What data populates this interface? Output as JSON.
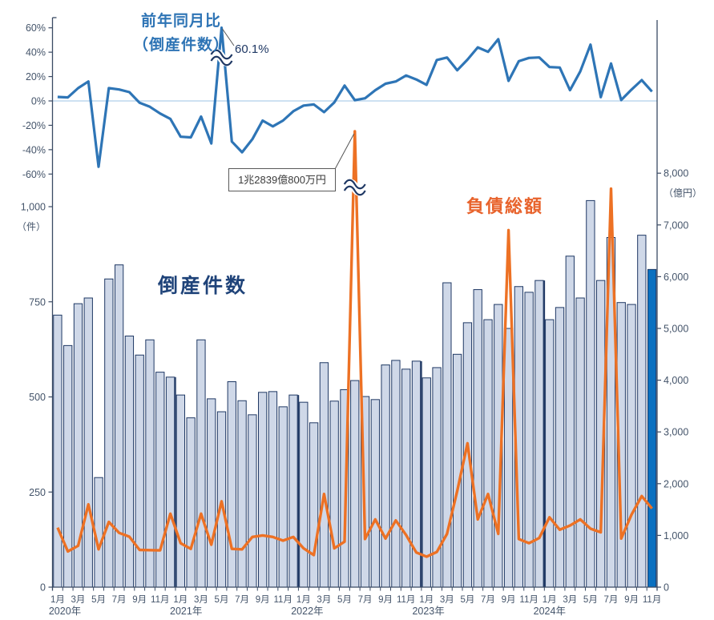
{
  "labels": {
    "yoy_line1": "前年同月比",
    "yoy_line2": "（倒産件数）",
    "yoy_peak": "60.1%",
    "bars_title": "倒産件数",
    "liab_title": "負債総額",
    "liab_peak_box": "1兆2839億800万円"
  },
  "colors": {
    "bar_fill": "#CFD8E8",
    "bar_stroke": "#1F3864",
    "bar_highlight": "#0A70C0",
    "yoy_line": "#2E75B6",
    "liab_line": "#ED7124",
    "zero_gridline": "#BDD7EE",
    "axis": "#3A4A63",
    "axis_text": "#44546A",
    "break_mark": "#1F3864",
    "pointer": "#555555"
  },
  "chart_data": {
    "type": "combo-bar-line",
    "x_start": "2020-01",
    "x_end": "2024-11",
    "n_points": 59,
    "month_tick_labels": [
      "1月",
      "3月",
      "5月",
      "7月",
      "9月",
      "11月"
    ],
    "year_labels": [
      "2020年",
      "2021年",
      "2022年",
      "2023年",
      "2024年"
    ],
    "axes": {
      "left_percent": {
        "tick_labels": [
          "60%",
          "40%",
          "20%",
          "0%",
          "-20%",
          "-40%",
          "-60%"
        ],
        "tick_values": [
          60,
          40,
          20,
          0,
          -20,
          -40,
          -60
        ]
      },
      "left_count": {
        "tick_labels": [
          "1,000",
          "750",
          "500",
          "250",
          "0"
        ],
        "tick_values": [
          1000,
          750,
          500,
          250,
          0
        ],
        "unit_label": "（件）"
      },
      "right_amount": {
        "tick_labels": [
          "8,000",
          "7,000",
          "6,000",
          "5,000",
          "4,000",
          "3,000",
          "2,000",
          "1,000",
          "0"
        ],
        "tick_values": [
          8000,
          7000,
          6000,
          5000,
          4000,
          3000,
          2000,
          1000,
          0
        ],
        "unit_label": "（億円）"
      }
    },
    "series": [
      {
        "name": "倒産件数",
        "type": "bar",
        "axis": "left_count",
        "unit": "件",
        "highlight_last": true,
        "values": [
          715,
          635,
          745,
          760,
          288,
          810,
          847,
          660,
          610,
          650,
          565,
          552,
          505,
          445,
          650,
          495,
          461,
          540,
          490,
          453,
          512,
          514,
          474,
          505,
          486,
          432,
          590,
          489,
          519,
          543,
          501,
          493,
          584,
          596,
          573,
          594,
          550,
          577,
          800,
          612,
          695,
          782,
          703,
          743,
          680,
          790,
          775,
          806,
          703,
          735,
          870,
          760,
          1016,
          806,
          919,
          748,
          743,
          925,
          835
        ]
      },
      {
        "name": "負債総額",
        "type": "line",
        "axis": "right_amount",
        "unit": "億円",
        "clipped_peak_index": 29,
        "clipped_peak_label": "1兆2839億800万円",
        "values": [
          1150,
          690,
          800,
          1600,
          730,
          1260,
          1050,
          975,
          720,
          715,
          710,
          1420,
          850,
          740,
          1420,
          820,
          1660,
          740,
          730,
          970,
          1000,
          970,
          900,
          970,
          750,
          620,
          1800,
          750,
          880,
          12839,
          930,
          1310,
          940,
          1290,
          1010,
          670,
          590,
          680,
          1030,
          1860,
          2780,
          1310,
          1800,
          1030,
          6900,
          930,
          850,
          950,
          1350,
          1110,
          1190,
          1310,
          1130,
          1060,
          7700,
          940,
          1400,
          1760,
          1520
        ]
      },
      {
        "name": "前年同月比（倒産件数）",
        "type": "line",
        "axis": "left_percent",
        "unit": "%",
        "peak_label": "60.1%",
        "peak_index": 16,
        "values": [
          3.3,
          2.9,
          10.5,
          16,
          -54,
          10.5,
          9.4,
          7.2,
          -1.5,
          -4.8,
          -10.3,
          -14.7,
          -29.4,
          -29.9,
          -12.8,
          -34.9,
          60.1,
          -33.3,
          -42.1,
          -31.4,
          -16.1,
          -20.9,
          -16.1,
          -8.5,
          -3.8,
          -2.9,
          -9.2,
          -1.2,
          12.6,
          0.6,
          2.2,
          8.8,
          14.1,
          16,
          20.9,
          17.6,
          13.2,
          33.6,
          35.6,
          25.2,
          33.9,
          44,
          40.3,
          50.7,
          16.4,
          32.6,
          35.3,
          35.7,
          27.8,
          27.4,
          8.8,
          24.2,
          46.2,
          3.1,
          30.7,
          0.7,
          9.3,
          17.1,
          7.7
        ]
      }
    ]
  }
}
